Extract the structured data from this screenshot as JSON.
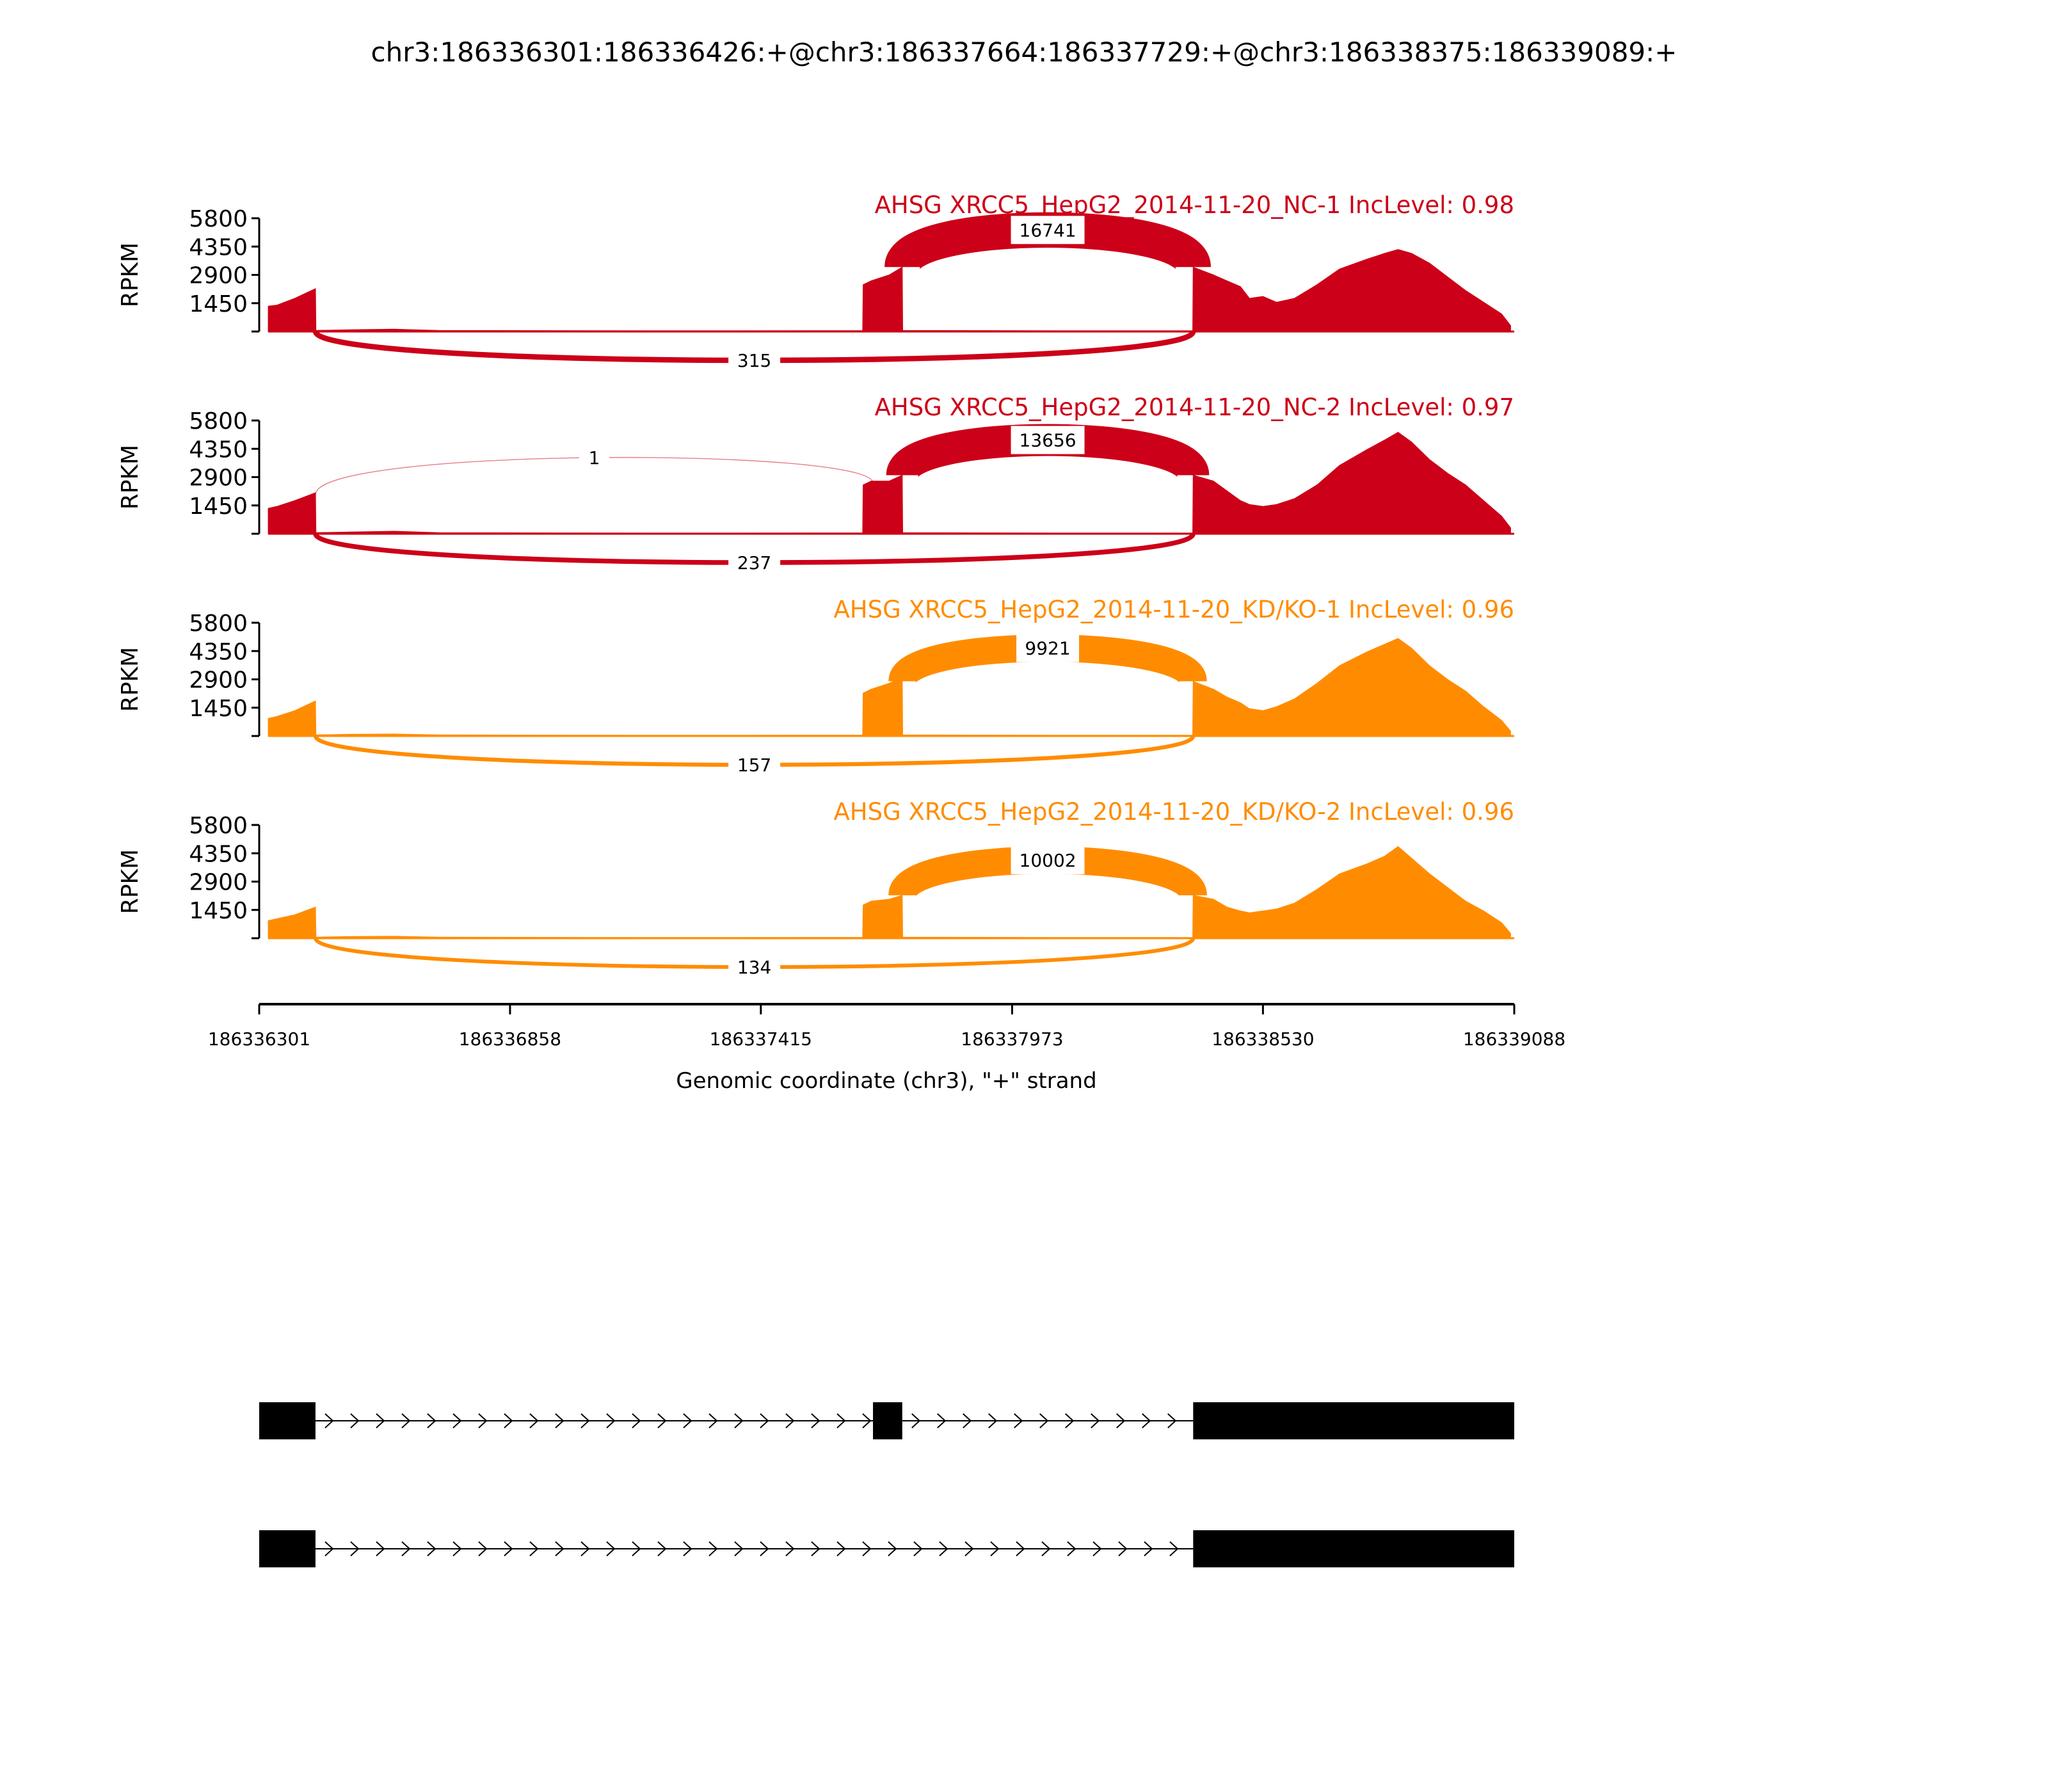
{
  "chart_data": {
    "type": "area",
    "title": "chr3:186336301:186336426:+@chr3:186337664:186337729:+@chr3:186338375:186339089:+",
    "xlabel": "Genomic coordinate (chr3), \"+\" strand",
    "ylabel": "RPKM",
    "xlim": [
      186336301,
      186339088
    ],
    "xticks": [
      "186336301",
      "186336858",
      "186337415",
      "186337973",
      "186338530",
      "186339088"
    ],
    "ylim": [
      0,
      5800
    ],
    "yticks": [
      "1450",
      "2900",
      "4350",
      "5800"
    ],
    "coverage_positions": [
      186336321,
      186336340,
      186336380,
      186336426,
      186336427,
      186336500,
      186336600,
      186336700,
      186336900,
      186337200,
      186337641,
      186337642,
      186337660,
      186337700,
      186337729,
      186337730,
      186337900,
      186338100,
      186338374,
      186338375,
      186338420,
      186338450,
      186338480,
      186338500,
      186338530,
      186338560,
      186338600,
      186338650,
      186338700,
      186338760,
      186338800,
      186338830,
      186338860,
      186338900,
      186338940,
      186338980,
      186339020,
      186339060,
      186339080
    ],
    "panels": [
      {
        "label": "AHSG XRCC5_HepG2_2014-11-20_NC-1 IncLevel: 0.98",
        "color": "#cc0018",
        "coverage": [
          1300,
          1350,
          1700,
          2200,
          60,
          90,
          120,
          60,
          50,
          40,
          50,
          2400,
          2600,
          2900,
          3300,
          60,
          50,
          40,
          40,
          3300,
          2900,
          2600,
          2300,
          1700,
          1800,
          1500,
          1700,
          2400,
          3200,
          3700,
          4000,
          4200,
          4000,
          3500,
          2800,
          2100,
          1500,
          900,
          300
        ],
        "junctions": [
          {
            "from": 186337729,
            "to": 186338375,
            "count": "16741",
            "side": "above",
            "start": 3300,
            "end": 3300,
            "peak": 5200
          },
          {
            "from": 186336426,
            "to": 186338375,
            "count": "315",
            "side": "below"
          }
        ]
      },
      {
        "label": "AHSG XRCC5_HepG2_2014-11-20_NC-2 IncLevel: 0.97",
        "color": "#cc0018",
        "coverage": [
          1300,
          1400,
          1700,
          2100,
          60,
          90,
          130,
          60,
          50,
          40,
          50,
          2500,
          2700,
          2700,
          3000,
          60,
          50,
          40,
          40,
          3000,
          2700,
          2200,
          1700,
          1500,
          1400,
          1500,
          1800,
          2500,
          3500,
          4300,
          4800,
          5200,
          4700,
          3800,
          3100,
          2500,
          1700,
          900,
          300
        ],
        "junctions": [
          {
            "from": 186337729,
            "to": 186338375,
            "count": "13656",
            "side": "above",
            "start": 3000,
            "end": 3000,
            "peak": 4800
          },
          {
            "from": 186336426,
            "to": 186337664,
            "count": "1",
            "side": "above",
            "start": 2000,
            "end": 2600,
            "peak": 3900
          },
          {
            "from": 186336426,
            "to": 186338375,
            "count": "237",
            "side": "below"
          }
        ]
      },
      {
        "label": "AHSG XRCC5_HepG2_2014-11-20_KD/KO-1 IncLevel: 0.96",
        "color": "#ff8c00",
        "coverage": [
          900,
          1000,
          1300,
          1800,
          60,
          90,
          100,
          60,
          50,
          40,
          50,
          2200,
          2400,
          2700,
          3000,
          60,
          50,
          40,
          40,
          2800,
          2400,
          2000,
          1700,
          1400,
          1300,
          1500,
          1900,
          2700,
          3600,
          4300,
          4700,
          5000,
          4500,
          3600,
          2900,
          2300,
          1500,
          800,
          250
        ],
        "junctions": [
          {
            "from": 186337729,
            "to": 186338375,
            "count": "9921",
            "side": "above",
            "start": 2800,
            "end": 2800,
            "peak": 4500
          },
          {
            "from": 186336426,
            "to": 186338375,
            "count": "157",
            "side": "below"
          }
        ]
      },
      {
        "label": "AHSG XRCC5_HepG2_2014-11-20_KD/KO-2 IncLevel: 0.96",
        "color": "#ff8c00",
        "coverage": [
          900,
          1000,
          1200,
          1600,
          60,
          90,
          100,
          60,
          50,
          40,
          50,
          1700,
          1900,
          2000,
          2200,
          60,
          50,
          40,
          40,
          2200,
          2000,
          1600,
          1400,
          1300,
          1400,
          1500,
          1800,
          2500,
          3300,
          3800,
          4200,
          4700,
          4100,
          3300,
          2600,
          1900,
          1400,
          800,
          250
        ],
        "junctions": [
          {
            "from": 186337729,
            "to": 186338375,
            "count": "10002",
            "side": "above",
            "start": 2200,
            "end": 2200,
            "peak": 4000
          },
          {
            "from": 186336426,
            "to": 186338375,
            "count": "134",
            "side": "below"
          }
        ]
      }
    ],
    "gene_models": [
      {
        "exons": [
          [
            186336301,
            186336426
          ],
          [
            186337664,
            186337729
          ],
          [
            186338375,
            186339088
          ]
        ]
      },
      {
        "exons": [
          [
            186336301,
            186336426
          ],
          [
            186338375,
            186339088
          ]
        ]
      }
    ]
  }
}
